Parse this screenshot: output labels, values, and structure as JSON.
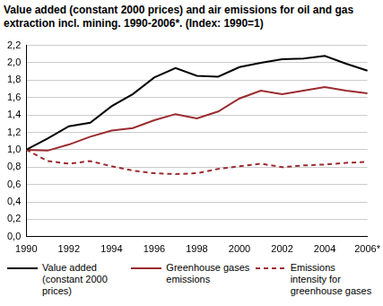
{
  "chart_data": {
    "type": "line",
    "title": "Value added (constant 2000 prices) and air emissions for oil and gas extraction incl. mining. 1990-2006*. (Index: 1990=1)",
    "categories": [
      "1990",
      null,
      "1992",
      null,
      "1994",
      null,
      "1996",
      null,
      "1998",
      null,
      "2000",
      null,
      "2002",
      null,
      "2004",
      null,
      "2006*"
    ],
    "series": [
      {
        "name": "Value added (constant 2000 prices)",
        "color": "#000000",
        "line_style": "solid",
        "values": [
          1.0,
          1.13,
          1.27,
          1.31,
          1.5,
          1.64,
          1.83,
          1.94,
          1.85,
          1.84,
          1.95,
          2.0,
          2.04,
          2.05,
          2.08,
          1.99,
          1.91
        ]
      },
      {
        "name": "Greenhouse gases emissions",
        "color": "#9b2b2f",
        "line_style": "solid",
        "values": [
          1.0,
          0.99,
          1.06,
          1.15,
          1.22,
          1.25,
          1.34,
          1.41,
          1.36,
          1.44,
          1.59,
          1.68,
          1.64,
          1.68,
          1.72,
          1.68,
          1.65
        ]
      },
      {
        "name": "Emissions intensity for greenhouse gases",
        "color": "#9b2b2f",
        "line_style": "dashed",
        "values": [
          1.0,
          0.87,
          0.84,
          0.87,
          0.81,
          0.76,
          0.73,
          0.72,
          0.73,
          0.78,
          0.81,
          0.84,
          0.8,
          0.82,
          0.83,
          0.85,
          0.86
        ]
      }
    ],
    "ylim": [
      0,
      2.2
    ],
    "yticks": [
      {
        "value": 0,
        "label": "0,0"
      },
      {
        "value": 0.2,
        "label": "0,2"
      },
      {
        "value": 0.4,
        "label": "0,4"
      },
      {
        "value": 0.6,
        "label": "0,6"
      },
      {
        "value": 0.8,
        "label": "0,8"
      },
      {
        "value": 1,
        "label": "1,0"
      },
      {
        "value": 1.2,
        "label": "1,2"
      },
      {
        "value": 1.4,
        "label": "1,4"
      },
      {
        "value": 1.6,
        "label": "1,6"
      },
      {
        "value": 1.8,
        "label": "1,8"
      },
      {
        "value": 2,
        "label": "2,0"
      },
      {
        "value": 2.2,
        "label": "2,2"
      }
    ],
    "grid": true,
    "legend": "bottom"
  }
}
